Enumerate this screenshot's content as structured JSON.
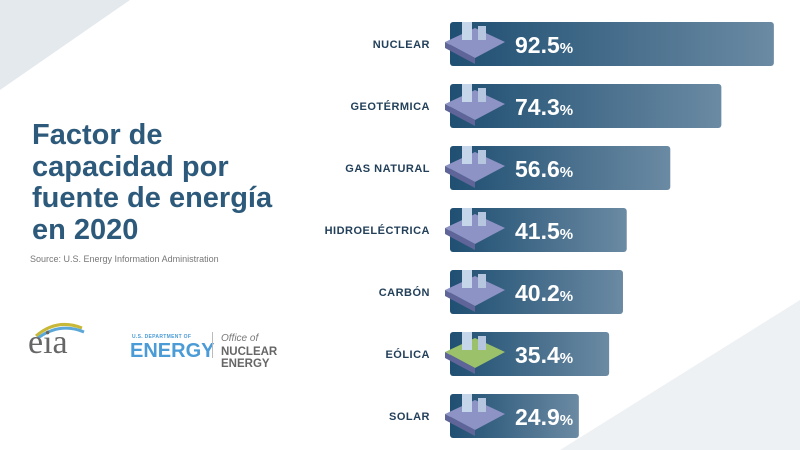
{
  "title_lines": [
    "Factor de",
    "capacidad por",
    "fuente de energía",
    "en 2020"
  ],
  "source": "Source: U.S. Energy Information Administration",
  "logos": {
    "eia": "eia",
    "doe_small": "U.S. DEPARTMENT OF",
    "doe_big": "ENERGY",
    "office_of": "Office of",
    "nuclear_energy": "NUCLEAR ENERGY"
  },
  "colors": {
    "bar_start": "#1f4f72",
    "bar_end": "#6b8aa3",
    "title": "#2d5a7b",
    "label": "#23405a"
  },
  "chart_data": {
    "type": "bar",
    "orientation": "horizontal",
    "title": "Factor de capacidad por fuente de energía en 2020",
    "categories": [
      "NUCLEAR",
      "GEOTÉRMICA",
      "GAS NATURAL",
      "HIDROELÉCTRICA",
      "CARBÓN",
      "EÓLICA",
      "SOLAR"
    ],
    "values": [
      92.5,
      74.3,
      56.6,
      41.5,
      40.2,
      35.4,
      24.9
    ],
    "unit": "%",
    "icons": [
      "nuclear-plant-icon",
      "geothermal-plant-icon",
      "gas-plant-icon",
      "hydro-dam-icon",
      "coal-mine-icon",
      "wind-turbines-icon",
      "solar-panels-icon"
    ]
  }
}
